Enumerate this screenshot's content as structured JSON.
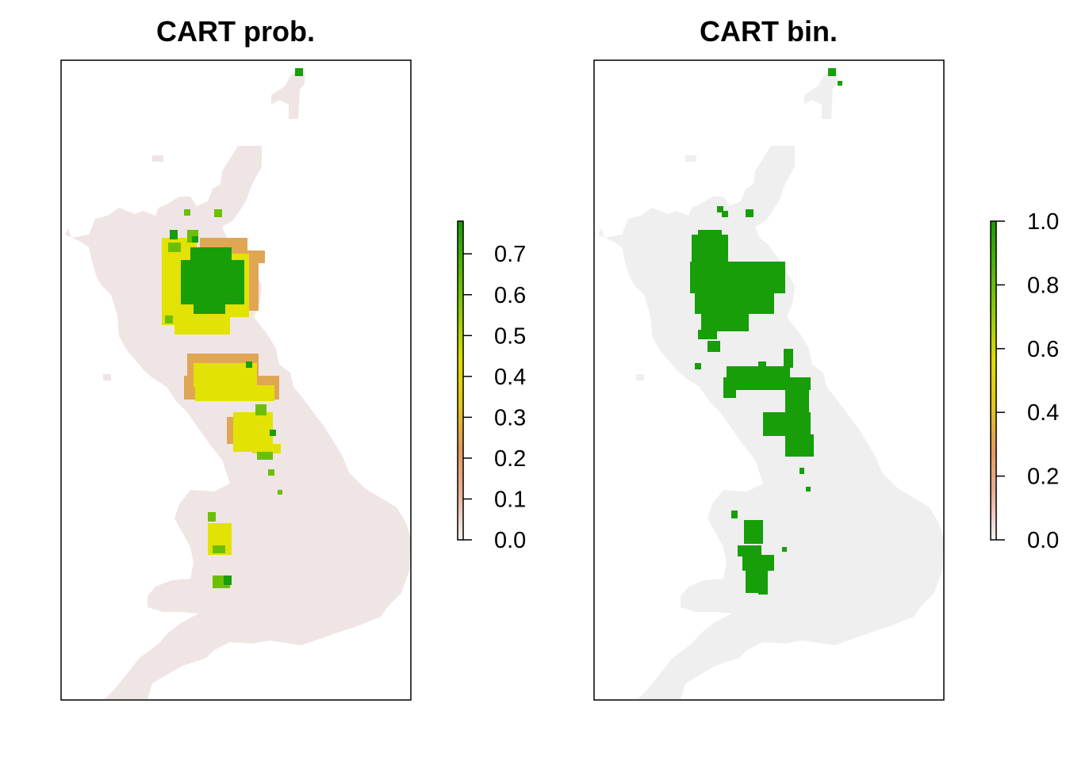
{
  "panels": [
    {
      "title": "CART prob.",
      "legend": {
        "ticks": [
          "0.0",
          "0.1",
          "0.2",
          "0.3",
          "0.4",
          "0.5",
          "0.6",
          "0.7"
        ],
        "min": 0.0,
        "max": 0.78,
        "colors": [
          "#f2f2f2",
          "#eab099",
          "#e29b5a",
          "#e2c81a",
          "#dcdc00",
          "#8ecc0a",
          "#4fb40a",
          "#189a05"
        ]
      },
      "colors": {
        "background": "#efe5e4",
        "low": "#e0a654",
        "mid": "#e2e204",
        "high": "#6cbf06",
        "top": "#179e09"
      }
    },
    {
      "title": "CART bin.",
      "legend": {
        "ticks": [
          "0.0",
          "0.2",
          "0.4",
          "0.6",
          "0.8",
          "1.0"
        ],
        "min": 0.0,
        "max": 1.0,
        "colors": [
          "#f2f2f2",
          "#eab099",
          "#e29b5a",
          "#e2c81a",
          "#dcdc00",
          "#8ecc0a",
          "#4fb40a",
          "#189a05"
        ]
      },
      "colors": {
        "background": "#efefef",
        "presence": "#179e09"
      }
    }
  ]
}
